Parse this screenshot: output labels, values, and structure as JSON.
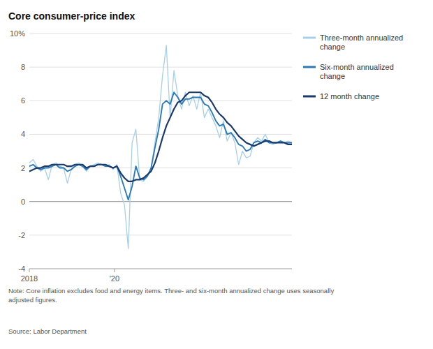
{
  "chart_data": {
    "type": "line",
    "title": "Core consumer-price index",
    "note": "Note: Core inflation excludes food and energy items. Three- and six-month annualized change uses seasonally\nadjusted figures.",
    "source": "Source: Labor Department",
    "x": [
      2018.0,
      2018.08942,
      2018.178841,
      2018.268261,
      2018.357681,
      2018.447101,
      2018.536522,
      2018.625942,
      2018.715362,
      2018.804783,
      2018.894203,
      2018.983623,
      2019.073043,
      2019.162464,
      2019.251884,
      2019.341304,
      2019.430725,
      2019.520145,
      2019.609565,
      2019.698986,
      2019.788406,
      2019.877826,
      2019.967246,
      2020.056667,
      2020.146087,
      2020.235507,
      2020.324928,
      2020.414348,
      2020.503768,
      2020.593188,
      2020.682609,
      2020.772029,
      2020.861449,
      2020.95087,
      2021.04029,
      2021.12971,
      2021.21913,
      2021.308551,
      2021.397971,
      2021.487391,
      2021.576812,
      2021.666232,
      2021.755652,
      2021.845072,
      2021.934493,
      2022.023913,
      2022.113333,
      2022.202754,
      2022.292174,
      2022.381594,
      2022.471014,
      2022.560435,
      2022.649855,
      2022.739275,
      2022.828696,
      2022.918116,
      2023.007536,
      2023.096957,
      2023.186377,
      2023.275797,
      2023.365217,
      2023.454638,
      2023.544058,
      2023.633478,
      2023.722899,
      2023.812319,
      2023.901739,
      2023.991159,
      2024.08058,
      2024.17
    ],
    "xlim": [
      2018.0,
      2024.17
    ],
    "xticks": [
      2018,
      {
        "value": 2020,
        "label": "'20"
      }
    ],
    "ylim": [
      -4,
      10
    ],
    "yticks": [
      -4,
      -2,
      0,
      2,
      4,
      6,
      8,
      {
        "value": 10,
        "label": "10%"
      }
    ],
    "grid": true,
    "legend": "right",
    "series": [
      {
        "name": "Three-month annualized\nchange",
        "color": "#a8cfea",
        "values": [
          2.3,
          2.5,
          2.1,
          1.8,
          2.0,
          1.3,
          2.2,
          2.3,
          2.1,
          2.0,
          1.1,
          1.9,
          2.2,
          2.3,
          2.1,
          1.8,
          2.1,
          2.2,
          2.3,
          2.2,
          2.1,
          2.2,
          1.9,
          2.2,
          0.5,
          -0.2,
          -2.8,
          3.5,
          4.3,
          1.3,
          1.2,
          1.5,
          2.0,
          3.5,
          5.0,
          7.5,
          9.3,
          5.0,
          7.8,
          6.3,
          5.5,
          6.5,
          5.7,
          6.3,
          5.5,
          6.5,
          5.0,
          5.5,
          5.0,
          4.5,
          3.8,
          4.8,
          3.6,
          4.1,
          3.5,
          2.2,
          3.0,
          2.6,
          2.7,
          3.5,
          3.8,
          3.6,
          4.0,
          3.5,
          3.4,
          3.5,
          3.6,
          3.5,
          3.6,
          3.5
        ]
      },
      {
        "name": "Six-month annualized\nchange",
        "color": "#2b7bba",
        "values": [
          2.1,
          2.2,
          2.0,
          1.9,
          2.0,
          2.0,
          2.1,
          2.2,
          2.0,
          2.0,
          1.8,
          1.9,
          2.1,
          2.2,
          2.1,
          1.9,
          2.1,
          2.1,
          2.2,
          2.2,
          2.1,
          2.1,
          2.0,
          2.1,
          1.5,
          0.8,
          0.1,
          0.9,
          2.1,
          1.4,
          1.3,
          1.5,
          2.0,
          3.2,
          4.3,
          5.8,
          6.0,
          5.8,
          6.5,
          6.2,
          5.8,
          6.1,
          6.1,
          6.2,
          6.2,
          6.2,
          5.8,
          5.7,
          5.3,
          4.8,
          4.5,
          4.6,
          4.0,
          4.1,
          3.8,
          3.4,
          3.3,
          3.0,
          3.1,
          3.5,
          3.6,
          3.5,
          3.7,
          3.5,
          3.5,
          3.5,
          3.6,
          3.5,
          3.5,
          3.5
        ]
      },
      {
        "name": "12 month change",
        "color": "#1a3a6b",
        "values": [
          1.8,
          1.9,
          2.0,
          2.0,
          2.1,
          2.1,
          2.2,
          2.2,
          2.2,
          2.2,
          2.1,
          2.1,
          2.2,
          2.2,
          2.2,
          2.0,
          2.1,
          2.1,
          2.2,
          2.2,
          2.2,
          2.1,
          2.0,
          2.1,
          1.7,
          1.4,
          1.2,
          1.2,
          1.3,
          1.3,
          1.4,
          1.6,
          1.8,
          2.3,
          3.0,
          3.8,
          4.5,
          5.0,
          5.5,
          5.9,
          6.0,
          6.3,
          6.5,
          6.5,
          6.5,
          6.5,
          6.3,
          6.2,
          5.9,
          5.5,
          5.2,
          5.0,
          4.7,
          4.5,
          4.2,
          3.9,
          3.7,
          3.5,
          3.4,
          3.3,
          3.4,
          3.5,
          3.6,
          3.6,
          3.5,
          3.5,
          3.5,
          3.5,
          3.4,
          3.4
        ]
      }
    ]
  }
}
